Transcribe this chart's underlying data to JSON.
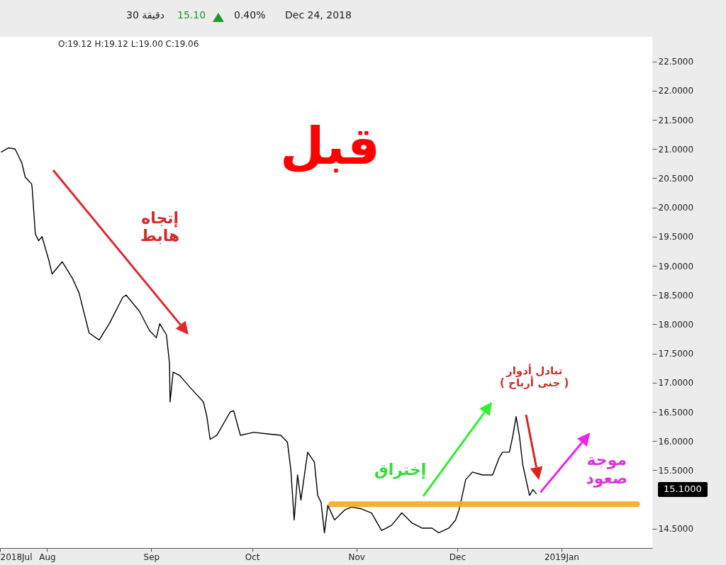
{
  "chart_data": {
    "type": "line",
    "x": [
      "2018-07-18T10:00",
      "2018-07-20T12:00",
      "2018-07-22T12:00",
      "2018-07-24T12:00",
      "2018-07-25T12:00",
      "2018-07-27T10:00",
      "2018-07-27T14:00",
      "2018-07-28T12:00",
      "2018-07-29T12:00",
      "2018-07-30T12:00",
      "2018-08-01T12:00",
      "2018-08-02T12:00",
      "2018-08-05T12:00",
      "2018-08-08T12:00",
      "2018-08-10T12:00",
      "2018-08-13T12:00",
      "2018-08-16T12:00",
      "2018-08-19T12:00",
      "2018-08-23T12:00",
      "2018-08-24T12:00",
      "2018-08-28T12:00",
      "2018-08-31T12:00",
      "2018-09-02T12:00",
      "2018-09-03T12:00",
      "2018-09-05T12:00",
      "2018-09-06T10:00",
      "2018-09-06T14:00",
      "2018-09-07T12:00",
      "2018-09-09T12:00",
      "2018-09-12T12:00",
      "2018-09-16T12:00",
      "2018-09-17T12:00",
      "2018-09-18T12:00",
      "2018-09-20T12:00",
      "2018-09-24T12:00",
      "2018-09-25T12:00",
      "2018-09-27T12:00",
      "2018-10-01T12:00",
      "2018-10-04T12:00",
      "2018-10-09T12:00",
      "2018-10-11T12:00",
      "2018-10-12T12:00",
      "2018-10-13T12:00",
      "2018-10-14T12:00",
      "2018-10-15T12:00",
      "2018-10-17T12:00",
      "2018-10-19T12:00",
      "2018-10-20T12:00",
      "2018-10-21T12:00",
      "2018-10-22T12:00",
      "2018-10-23T12:00",
      "2018-10-25T12:00",
      "2018-10-28T12:00",
      "2018-10-30T12:00",
      "2018-11-02T12:00",
      "2018-11-05T12:00",
      "2018-11-08T12:00",
      "2018-11-11T12:00",
      "2018-11-14T12:00",
      "2018-11-17T12:00",
      "2018-11-20T12:00",
      "2018-11-23T12:00",
      "2018-11-25T12:00",
      "2018-11-28T12:00",
      "2018-11-30T12:00",
      "2018-12-01T12:00",
      "2018-12-02T12:00",
      "2018-12-03T12:00",
      "2018-12-05T12:00",
      "2018-12-08T12:00",
      "2018-12-11T12:00",
      "2018-12-13T12:00",
      "2018-12-14T12:00",
      "2018-12-16T12:00",
      "2018-12-17T12:00",
      "2018-12-18T12:00",
      "2018-12-19T12:00",
      "2018-12-20T12:00",
      "2018-12-22T12:00",
      "2018-12-23T12:00",
      "2018-12-24T12:00"
    ],
    "series": [
      {
        "color": "#000000",
        "values": [
          20.95,
          21.02,
          21.0,
          20.76,
          20.52,
          20.4,
          20.32,
          19.55,
          19.43,
          19.5,
          19.1,
          18.86,
          19.07,
          18.79,
          18.54,
          17.85,
          17.73,
          18.01,
          18.46,
          18.5,
          18.22,
          17.89,
          17.77,
          18.01,
          17.82,
          17.33,
          16.67,
          17.18,
          17.12,
          16.92,
          16.67,
          16.43,
          16.03,
          16.1,
          16.5,
          16.52,
          16.1,
          16.15,
          16.13,
          16.1,
          15.98,
          15.51,
          14.65,
          15.42,
          14.99,
          15.81,
          15.64,
          15.07,
          14.95,
          14.43,
          14.9,
          14.65,
          14.82,
          14.87,
          14.84,
          14.77,
          14.47,
          14.56,
          14.77,
          14.6,
          14.51,
          14.51,
          14.43,
          14.51,
          14.65,
          14.82,
          15.07,
          15.34,
          15.47,
          15.42,
          15.42,
          15.72,
          15.81,
          15.81,
          16.08,
          16.42,
          16.08,
          15.59,
          15.07,
          15.17,
          15.1
        ]
      },
      {
        "type": "line",
        "color": "#f5a623",
        "x": [
          "2018-10-24T12:00",
          "2019-01-23T12:00"
        ],
        "values": [
          14.92,
          14.92
        ]
      }
    ],
    "xlim": [
      "2018-07-18T00:00",
      "2019-01-28T00:00"
    ],
    "xticks": [
      {
        "value": "2018-07-18",
        "label": "2018Jul"
      },
      {
        "value": "2018-08-01",
        "label": "Aug"
      },
      {
        "value": "2018-09-01",
        "label": "Sep"
      },
      {
        "value": "2018-10-01",
        "label": "Oct"
      },
      {
        "value": "2018-11-01",
        "label": "Nov"
      },
      {
        "value": "2018-12-01",
        "label": "Dec"
      },
      {
        "value": "2019-01-01",
        "label": "2019Jan"
      }
    ],
    "ylim": [
      14.17,
      22.92
    ],
    "yticks": [
      {
        "value": 14.5,
        "label": "14.5000"
      },
      {
        "value": 15.5,
        "label": "15.5000"
      },
      {
        "value": 16,
        "label": "16.0000"
      },
      {
        "value": 16.5,
        "label": "16.5000"
      },
      {
        "value": 17,
        "label": "17.0000"
      },
      {
        "value": 17.5,
        "label": "17.5000"
      },
      {
        "value": 18,
        "label": "18.0000"
      },
      {
        "value": 18.5,
        "label": "18.5000"
      },
      {
        "value": 19,
        "label": "19.0000"
      },
      {
        "value": 19.5,
        "label": "19.5000"
      },
      {
        "value": 20,
        "label": "20.0000"
      },
      {
        "value": 20.5,
        "label": "20.5000"
      },
      {
        "value": 21,
        "label": "21.0000"
      },
      {
        "value": 21.5,
        "label": "21.5000"
      },
      {
        "value": 22,
        "label": "22.0000"
      },
      {
        "value": 22.5,
        "label": "22.5000"
      }
    ],
    "annotations": [
      "30 دقيقة",
      "15.10",
      "0.40%",
      "Dec 24, 2018",
      "O:19.12 H:19.12 L:19.00 C:19.06",
      "قبل",
      "إتجاه\nهابط",
      "تبادل أدوار\n( جنى أرباح )",
      "إختراق",
      {
        "text": "موجة\nصعود",
        "x": "2018-12-24T12:00",
        "y": 15.1
      },
      "15.1000"
    ]
  }
}
